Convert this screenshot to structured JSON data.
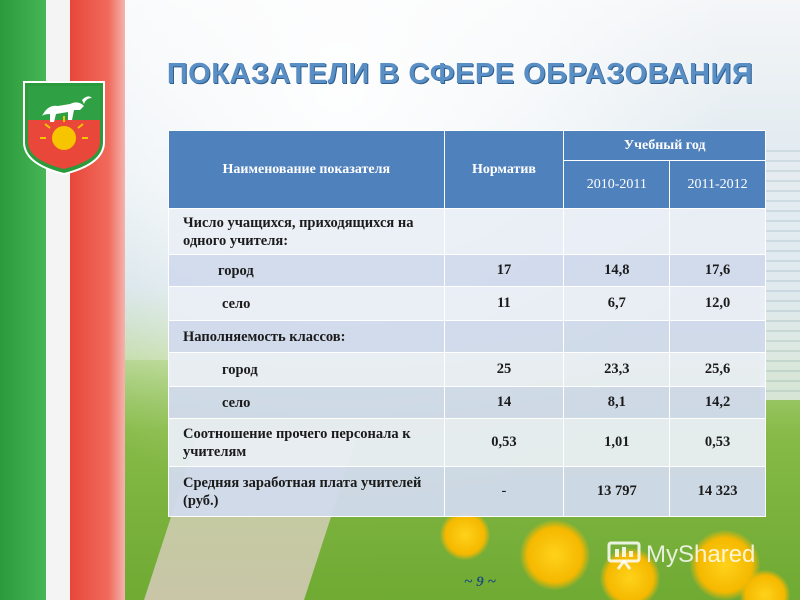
{
  "slide": {
    "title": "ПОКАЗАТЕЛИ В СФЕРЕ ОБРАЗОВАНИЯ",
    "page_number": "~ 9 ~",
    "watermark": "MyShared"
  },
  "colors": {
    "header_bg": "#4f81bd",
    "row_light": "#eaeef6",
    "row_dark": "#d1daec",
    "title_color": "#5a8fc6",
    "flag_green": "#2a9a3c",
    "flag_red": "#e8473a"
  },
  "icons": {
    "emblem": "coat-of-arms-icon",
    "watermark": "presentation-board-icon"
  },
  "table": {
    "headers": {
      "name": "Наименование показателя",
      "norm": "Норматив",
      "year_group": "Учебный год",
      "year1": "2010-2011",
      "year2": "2011-2012"
    },
    "rows": [
      {
        "name": "Число учащихся, приходящихся на одного учителя:",
        "norm": "",
        "y1": "",
        "y2": ""
      },
      {
        "name": "город",
        "norm": "17",
        "y1": "14,8",
        "y2": "17,6"
      },
      {
        "name": "село",
        "norm": "11",
        "y1": "6,7",
        "y2": "12,0"
      },
      {
        "name": "Наполняемость классов:",
        "norm": "",
        "y1": "",
        "y2": ""
      },
      {
        "name": "город",
        "norm": "25",
        "y1": "23,3",
        "y2": "25,6"
      },
      {
        "name": "село",
        "norm": "14",
        "y1": "8,1",
        "y2": "14,2"
      },
      {
        "name": "Соотношение прочего персонала к учителям",
        "norm": "0,53",
        "y1": "1,01",
        "y2": "0,53"
      },
      {
        "name": "Средняя заработная плата учителей (руб.)",
        "norm": "-",
        "y1": "13 797",
        "y2": "14 323"
      }
    ]
  }
}
